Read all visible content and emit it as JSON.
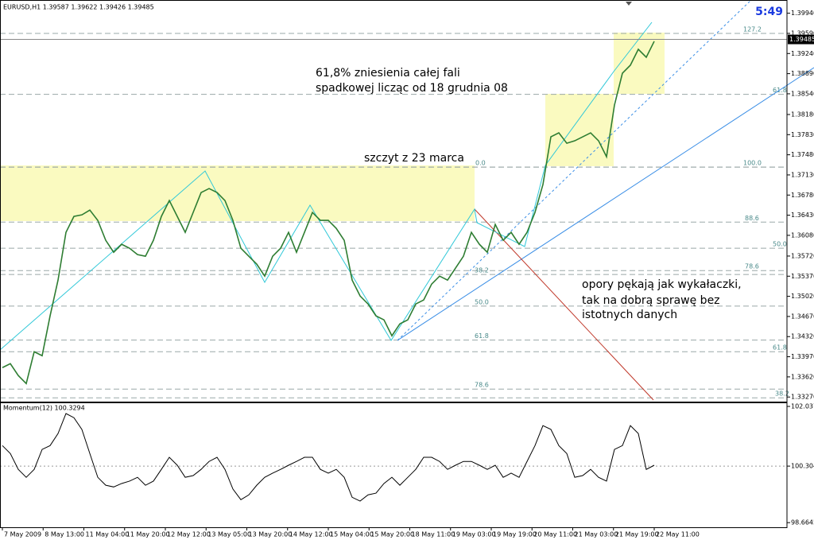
{
  "chart_data": [
    {
      "type": "line",
      "title": "EURUSD,H1 1.39587 1.39622 1.39426 1.39485",
      "timer": "5:49",
      "ylim": [
        1.3319,
        1.4017
      ],
      "yticks": [
        {
          "value": 1.3994,
          "label": "1.39940"
        },
        {
          "value": 1.3959,
          "label": "1.39590"
        },
        {
          "value": 1.3924,
          "label": "1.39240"
        },
        {
          "value": 1.3889,
          "label": "1.38890"
        },
        {
          "value": 1.3854,
          "label": "1.38540"
        },
        {
          "value": 1.3818,
          "label": "1.38180"
        },
        {
          "value": 1.3783,
          "label": "1.37830"
        },
        {
          "value": 1.3748,
          "label": "1.37480"
        },
        {
          "value": 1.3713,
          "label": "1.37130"
        },
        {
          "value": 1.3678,
          "label": "1.36780"
        },
        {
          "value": 1.3643,
          "label": "1.36430"
        },
        {
          "value": 1.3608,
          "label": "1.36080"
        },
        {
          "value": 1.3572,
          "label": "1.35720"
        },
        {
          "value": 1.3537,
          "label": "1.35370"
        },
        {
          "value": 1.3502,
          "label": "1.35020"
        },
        {
          "value": 1.3467,
          "label": "1.34670"
        },
        {
          "value": 1.3432,
          "label": "1.34320"
        },
        {
          "value": 1.3397,
          "label": "1.33970"
        },
        {
          "value": 1.3362,
          "label": "1.33620"
        },
        {
          "value": 1.3327,
          "label": "1.33270"
        }
      ],
      "last_price": {
        "value": 1.39485,
        "label": "1.39485"
      },
      "series": [
        {
          "color": "#2e7d32",
          "values": [
            1.33781,
            1.3385,
            1.33643,
            1.33504,
            1.34057,
            1.33988,
            1.3468,
            1.35302,
            1.36132,
            1.36409,
            1.36436,
            1.36519,
            1.3634,
            1.35994,
            1.35786,
            1.35925,
            1.35856,
            1.35745,
            1.35717,
            1.35994,
            1.36409,
            1.36685,
            1.36409,
            1.36132,
            1.36478,
            1.36824,
            1.36893,
            1.36824,
            1.36685,
            1.3634,
            1.35856,
            1.35717,
            1.35579,
            1.35371,
            1.35717,
            1.35856,
            1.36132,
            1.35786,
            1.36132,
            1.36478,
            1.3634,
            1.3634,
            1.36201,
            1.35994,
            1.35302,
            1.35026,
            1.34887,
            1.3468,
            1.34611,
            1.34334,
            1.34542,
            1.34611,
            1.34887,
            1.34957,
            1.35233,
            1.35371,
            1.35302,
            1.3551,
            1.35717,
            1.36132,
            1.35925,
            1.35786,
            1.3627,
            1.35994,
            1.36132,
            1.35925,
            1.36132,
            1.36478,
            1.36962,
            1.37792,
            1.37861,
            1.37681,
            1.37723,
            1.37792,
            1.37861,
            1.37723,
            1.37446,
            1.38345,
            1.38898,
            1.39037,
            1.39313,
            1.39175,
            1.39452
          ]
        }
      ],
      "levels": [
        {
          "price": 1.3959,
          "label": "127.2"
        },
        {
          "price": 1.3853,
          "label": "61.8"
        },
        {
          "price": 1.37266,
          "label": "0.0"
        },
        {
          "price": 1.37266,
          "label": "100.0"
        },
        {
          "price": 1.3631,
          "label": "88.6"
        },
        {
          "price": 1.35856,
          "label": "50.0"
        },
        {
          "price": 1.35468,
          "label": "78.6"
        },
        {
          "price": 1.35399,
          "label": "38.2"
        },
        {
          "price": 1.3485,
          "label": "50.0"
        },
        {
          "price": 1.3426,
          "label": "61.8"
        },
        {
          "price": 1.34058,
          "label": "61.8"
        },
        {
          "price": 1.33408,
          "label": "78.6"
        },
        {
          "price": 1.33256,
          "label": "38.2"
        }
      ],
      "annotations": [
        "61,8% zniesienia całej fali",
        "spadkowej licząc od 18 grudnia 08",
        "szczyt z 23 marca",
        "opory pękają jak wykałaczki,",
        "tak na dobrą sprawę bez",
        "istotnych danych"
      ]
    },
    {
      "type": "line",
      "title": "Momentum(12) 100.3294",
      "ylim": [
        98.53,
        102.13
      ],
      "yticks": [
        102.037,
        100.3048,
        98.6645
      ],
      "series": [
        {
          "color": "#000000",
          "values": [
            100.9,
            100.67,
            100.21,
            99.98,
            100.21,
            100.79,
            100.9,
            101.25,
            101.83,
            101.71,
            101.37,
            100.67,
            99.98,
            99.75,
            99.7,
            99.8,
            99.87,
            99.98,
            99.75,
            99.87,
            100.21,
            100.56,
            100.33,
            99.98,
            100.03,
            100.21,
            100.44,
            100.56,
            100.21,
            99.64,
            99.33,
            99.47,
            99.75,
            99.98,
            100.1,
            100.21,
            100.33,
            100.44,
            100.56,
            100.56,
            100.21,
            100.1,
            100.21,
            99.98,
            99.4,
            99.29,
            99.47,
            99.52,
            99.8,
            99.98,
            99.75,
            99.98,
            100.21,
            100.56,
            100.56,
            100.44,
            100.21,
            100.33,
            100.44,
            100.44,
            100.33,
            100.21,
            100.33,
            99.98,
            100.1,
            99.98,
            100.44,
            100.9,
            101.48,
            101.37,
            100.9,
            100.67,
            99.98,
            100.03,
            100.21,
            99.98,
            99.87,
            100.79,
            100.9,
            101.48,
            101.25,
            100.21,
            100.33
          ]
        }
      ],
      "x_labels": [
        "7 May 2009",
        "8 May 13:00",
        "11 May 04:00",
        "11 May 20:00",
        "12 May 12:00",
        "13 May 05:00",
        "13 May 20:00",
        "14 May 12:00",
        "15 May 04:00",
        "15 May 20:00",
        "18 May 11:00",
        "19 May 03:00",
        "19 May 19:00",
        "20 May 11:00",
        "21 May 03:00",
        "21 May 19:00",
        "22 May 11:00"
      ]
    }
  ]
}
